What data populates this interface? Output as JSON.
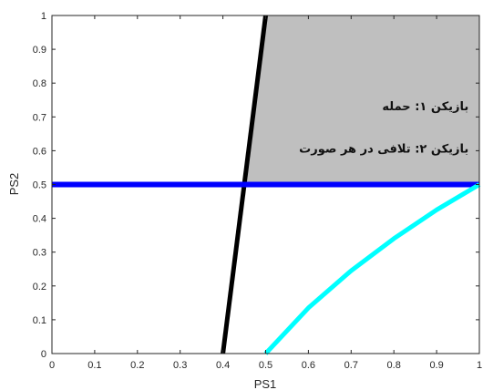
{
  "chart_data": {
    "type": "line",
    "xlabel": "PS1",
    "ylabel": "PS2",
    "xlim": [
      0,
      1
    ],
    "ylim": [
      0,
      1
    ],
    "xticks": [
      0,
      0.1,
      0.2,
      0.3,
      0.4,
      0.5,
      0.6,
      0.7,
      0.8,
      0.9,
      1
    ],
    "yticks": [
      0,
      0.1,
      0.2,
      0.3,
      0.4,
      0.5,
      0.6,
      0.7,
      0.8,
      0.9,
      1
    ],
    "grid": false,
    "region": {
      "color": "#bfbfbf",
      "polygon": [
        [
          0.448,
          0.5
        ],
        [
          0.5,
          1.0
        ],
        [
          1.0,
          1.0
        ],
        [
          1.0,
          0.5
        ]
      ]
    },
    "series": [
      {
        "color": "#000000",
        "x": [
          0.4,
          0.5
        ],
        "y": [
          0.0,
          1.0
        ]
      },
      {
        "color": "#0000ff",
        "x": [
          0.0,
          1.0
        ],
        "y": [
          0.5,
          0.5
        ]
      },
      {
        "color": "#00ffff",
        "x": [
          0.5,
          0.6,
          0.7,
          0.8,
          0.9,
          1.0
        ],
        "y": [
          0.0,
          0.135,
          0.245,
          0.34,
          0.425,
          0.5
        ]
      }
    ],
    "annotations": [
      {
        "text": "بازیکن ۱: حمله",
        "x": 0.975,
        "y": 0.72
      },
      {
        "text": "بازیکن ۲: تلافی در هر صورت",
        "x": 0.975,
        "y": 0.595
      }
    ]
  }
}
